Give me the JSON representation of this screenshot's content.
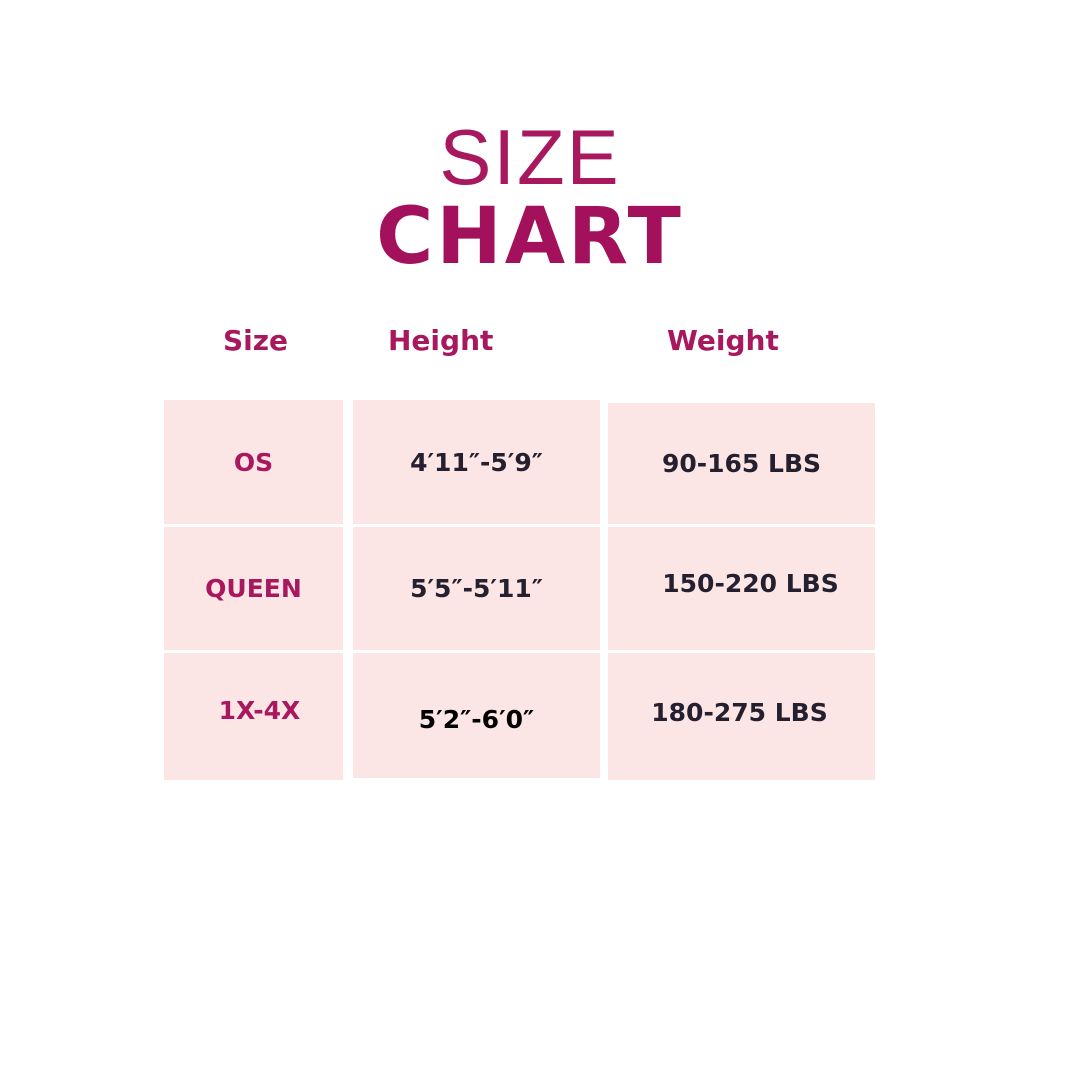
{
  "title": {
    "line1": "SIZE",
    "line2": "CHART"
  },
  "headers": [
    "Size",
    "Height",
    "Weight"
  ],
  "rows": [
    {
      "size": "OS",
      "height": "4′11″-5′9″",
      "weight": "90-165 LBS"
    },
    {
      "size": "QUEEN",
      "height": "5′5″-5′11″",
      "weight": "150-220 LBS"
    },
    {
      "size": "1X-4X",
      "height": "5′2″-6′0″",
      "weight": "180-275 LBS"
    }
  ],
  "colors": {
    "accent": "#a8185e",
    "cell_bg": "#fce5e5",
    "text": "#25202f"
  }
}
